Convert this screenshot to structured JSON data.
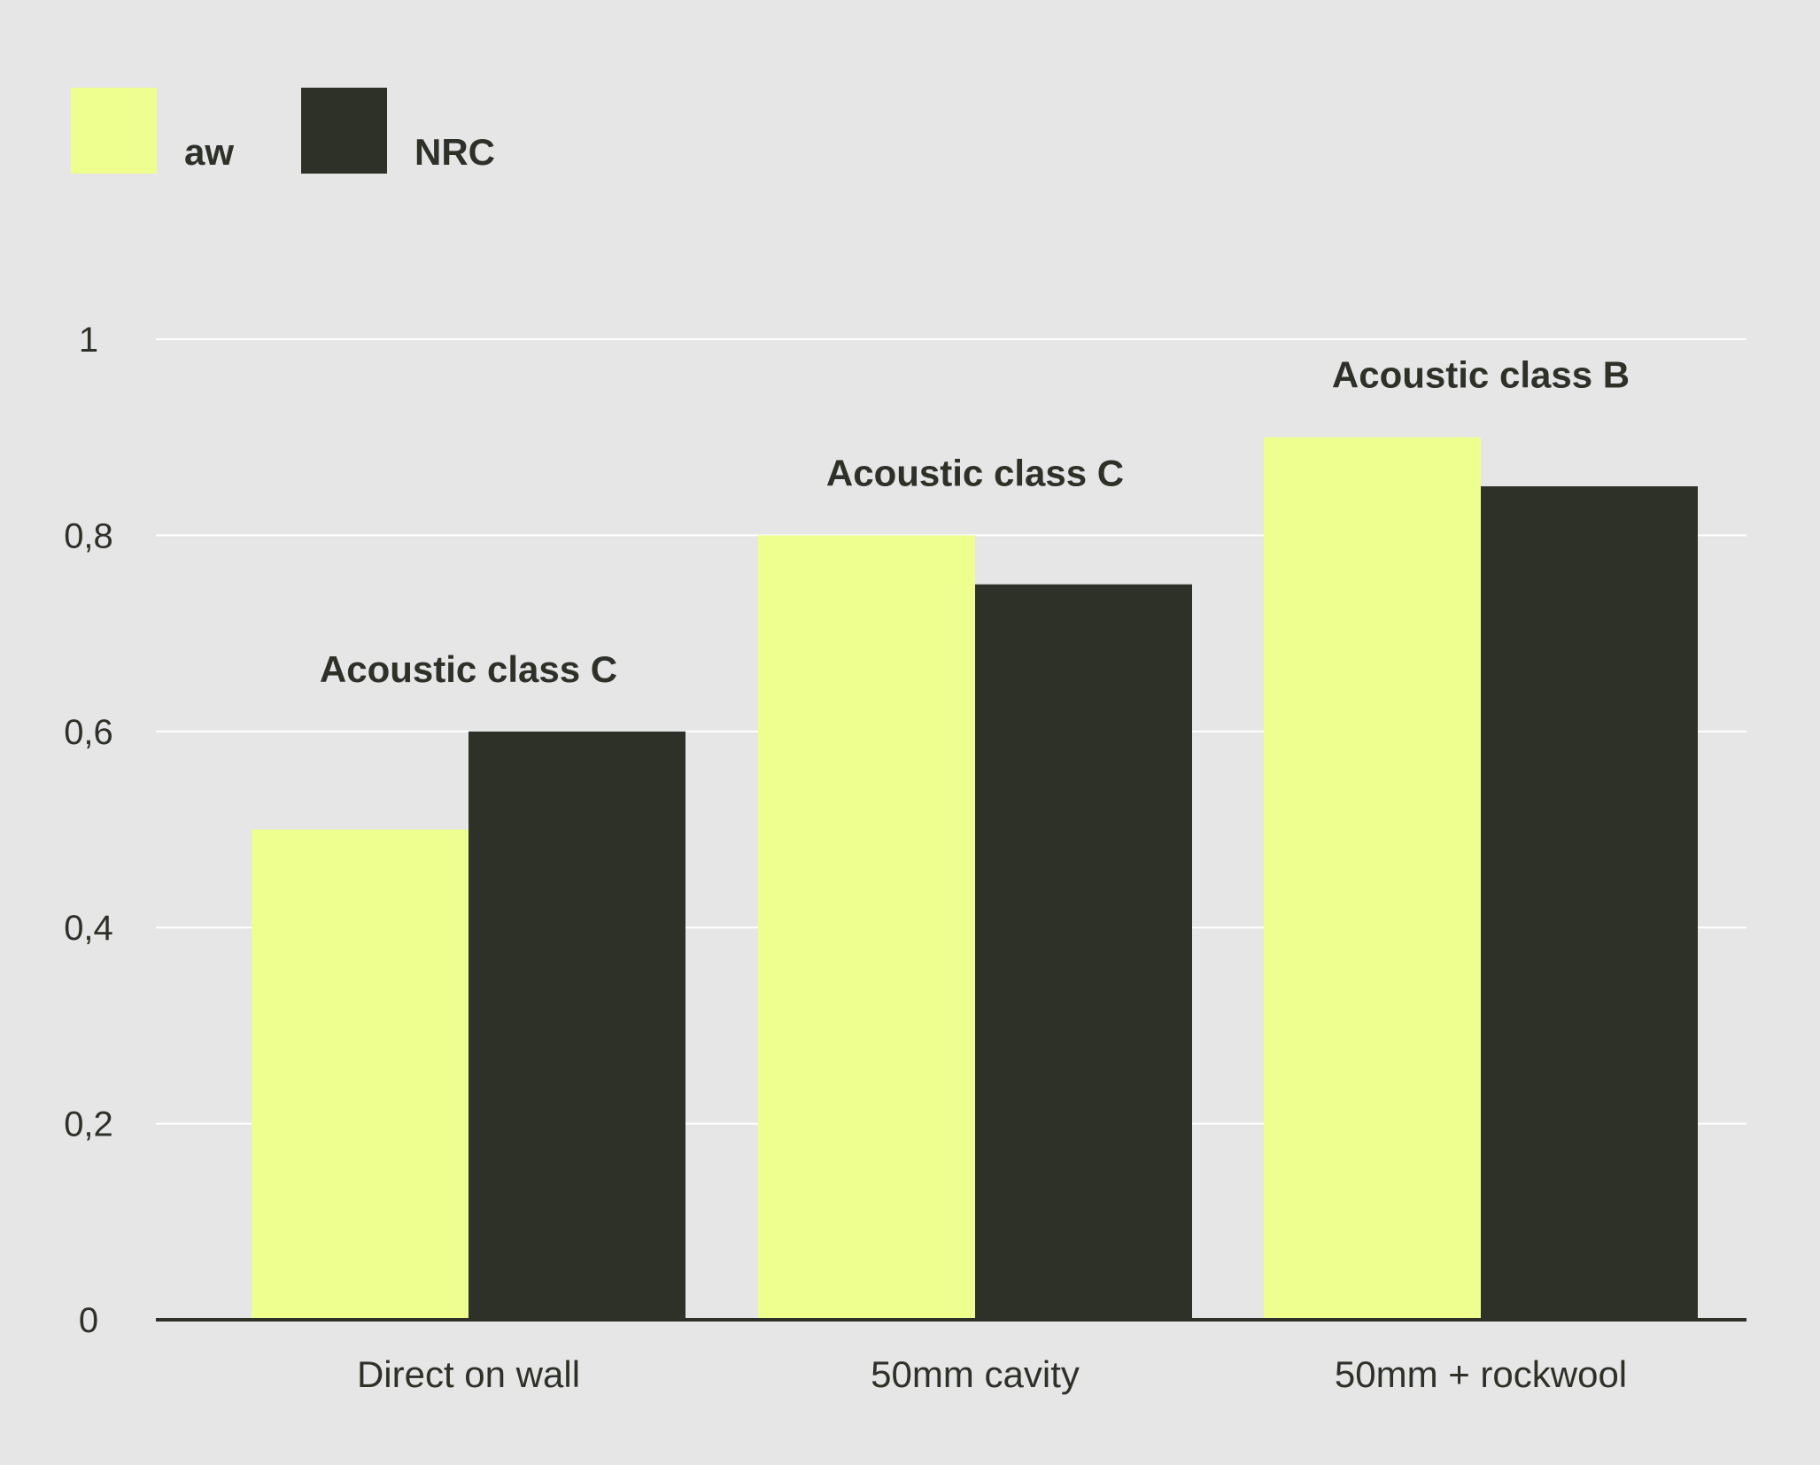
{
  "chart_data": {
    "type": "bar",
    "categories": [
      "Direct on wall",
      "50mm cavity",
      "50mm + rockwool"
    ],
    "series": [
      {
        "name": "aw",
        "values": [
          0.5,
          0.8,
          0.9
        ],
        "color": "#eeff8f"
      },
      {
        "name": "NRC",
        "values": [
          0.6,
          0.75,
          0.85
        ],
        "color": "#2e3128"
      }
    ],
    "annotations": [
      "Acoustic class C",
      "Acoustic class C",
      "Acoustic class B"
    ],
    "ylim": [
      0,
      1
    ],
    "yticks": [
      0,
      0.2,
      0.4,
      0.6,
      0.8,
      1
    ],
    "ytick_labels": [
      "0",
      "0,2",
      "0,4",
      "0,6",
      "0,8",
      "1"
    ],
    "grid": true,
    "legend_position": "top-left",
    "title": "",
    "xlabel": "",
    "ylabel": ""
  }
}
